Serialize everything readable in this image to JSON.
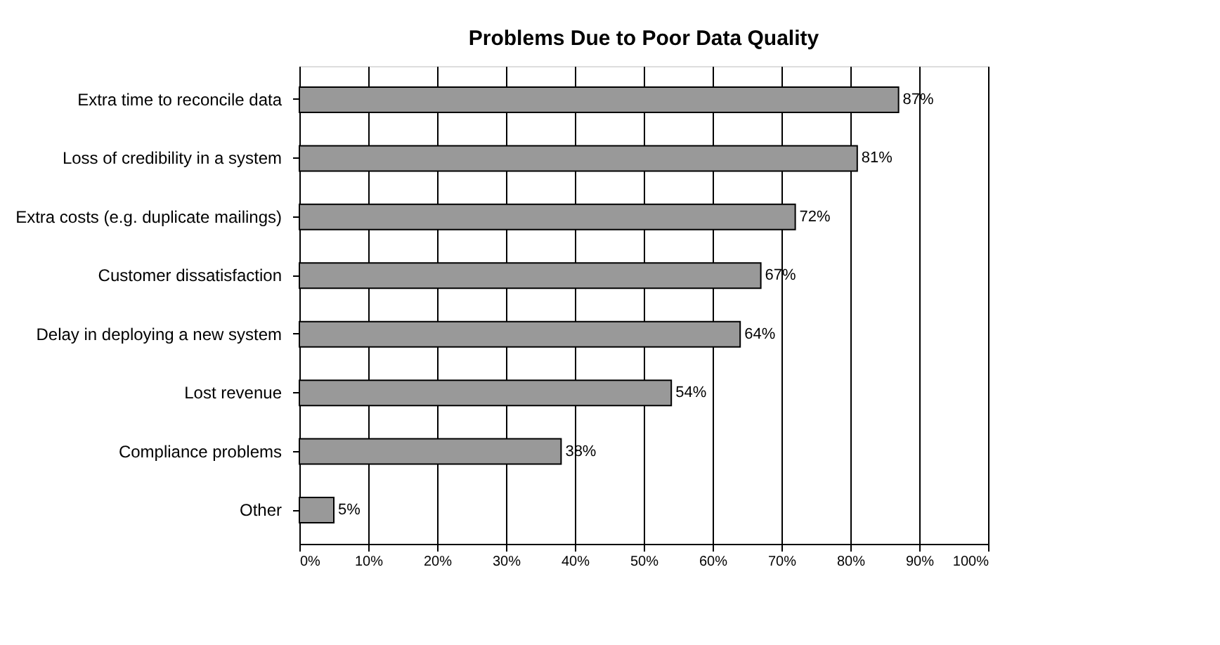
{
  "chart_data": {
    "type": "bar",
    "orientation": "horizontal",
    "title": "Problems Due to Poor Data Quality",
    "categories": [
      "Extra time to reconcile data",
      "Loss of credibility in a system",
      "Extra costs (e.g. duplicate mailings)",
      "Customer dissatisfaction",
      "Delay in deploying a new system",
      "Lost revenue",
      "Compliance problems",
      "Other"
    ],
    "values": [
      87,
      81,
      72,
      67,
      64,
      54,
      38,
      5
    ],
    "value_labels": [
      "87%",
      "81%",
      "72%",
      "67%",
      "64%",
      "54%",
      "38%",
      "5%"
    ],
    "color": "#999999",
    "xlim": [
      0,
      100
    ],
    "xticks": [
      {
        "value": 0,
        "label": "0%"
      },
      {
        "value": 10,
        "label": "10%"
      },
      {
        "value": 20,
        "label": "20%"
      },
      {
        "value": 30,
        "label": "30%"
      },
      {
        "value": 40,
        "label": "40%"
      },
      {
        "value": 50,
        "label": "50%"
      },
      {
        "value": 60,
        "label": "60%"
      },
      {
        "value": 70,
        "label": "70%"
      },
      {
        "value": 80,
        "label": "80%"
      },
      {
        "value": 90,
        "label": "90%"
      },
      {
        "value": 100,
        "label": "100%"
      }
    ],
    "grid": "x"
  }
}
